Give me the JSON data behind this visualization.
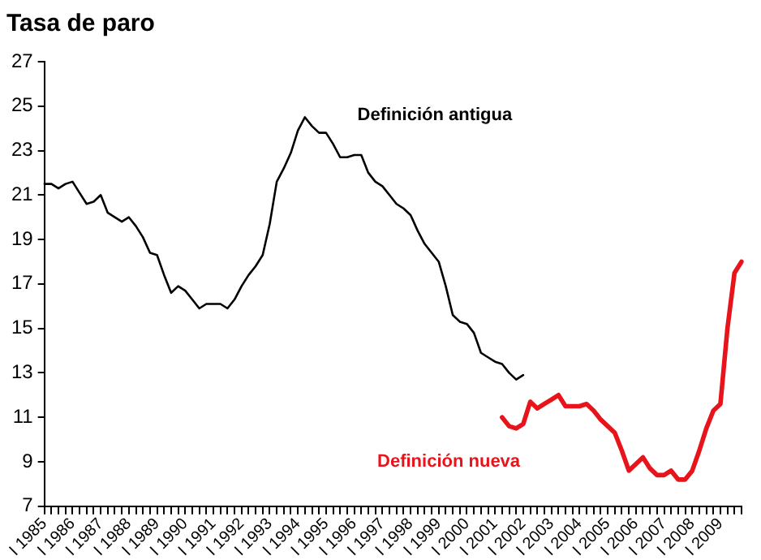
{
  "chart_data": {
    "type": "line",
    "title": "Tasa de paro",
    "categories": [
      "I 1985",
      null,
      null,
      null,
      "I 1986",
      null,
      null,
      null,
      "I 1987",
      null,
      null,
      null,
      "I 1988",
      null,
      null,
      null,
      "I 1989",
      null,
      null,
      null,
      "I 1990",
      null,
      null,
      null,
      "I 1991",
      null,
      null,
      null,
      "I 1992",
      null,
      null,
      null,
      "I 1993",
      null,
      null,
      null,
      "I 1994",
      null,
      null,
      null,
      "I 1995",
      null,
      null,
      null,
      "I 1996",
      null,
      null,
      null,
      "I 1997",
      null,
      null,
      null,
      "I 1998",
      null,
      null,
      null,
      "I 1999",
      null,
      null,
      null,
      "I 2000",
      null,
      null,
      null,
      "I 2001",
      null,
      null,
      null,
      "I 2002",
      null,
      null,
      null,
      "I 2003",
      null,
      null,
      null,
      "I 2004",
      null,
      null,
      null,
      "I 2005",
      null,
      null,
      null,
      "I 2006",
      null,
      null,
      null,
      "I 2007",
      null,
      null,
      null,
      "I 2008",
      null,
      null,
      null,
      "I 2009",
      null,
      null,
      null
    ],
    "series": [
      {
        "name": "Definición antigua",
        "color": "#000000",
        "values": [
          21.5,
          21.5,
          21.3,
          21.5,
          21.6,
          21.1,
          20.6,
          20.7,
          21.0,
          20.2,
          20.0,
          19.8,
          20.0,
          19.6,
          19.1,
          18.4,
          18.3,
          17.4,
          16.6,
          16.9,
          16.7,
          16.3,
          15.9,
          16.1,
          16.1,
          16.1,
          15.9,
          16.3,
          16.9,
          17.4,
          17.8,
          18.3,
          19.7,
          21.6,
          22.2,
          22.9,
          23.9,
          24.5,
          24.1,
          23.8,
          23.8,
          23.3,
          22.7,
          22.7,
          22.8,
          22.8,
          22.0,
          21.6,
          21.4,
          21.0,
          20.6,
          20.4,
          20.1,
          19.4,
          18.8,
          18.4,
          18.0,
          16.9,
          15.6,
          15.3,
          15.2,
          14.8,
          13.9,
          13.7,
          13.5,
          13.4,
          13.0,
          12.7,
          12.9,
          null,
          null,
          null,
          null,
          null,
          null,
          null,
          null,
          null,
          null,
          null,
          null,
          null,
          null,
          null,
          null,
          null,
          null,
          null,
          null,
          null,
          null,
          null,
          null,
          null,
          null,
          null,
          null,
          null,
          null,
          null
        ]
      },
      {
        "name": "Definición nueva",
        "color": "#e8141b",
        "values": [
          null,
          null,
          null,
          null,
          null,
          null,
          null,
          null,
          null,
          null,
          null,
          null,
          null,
          null,
          null,
          null,
          null,
          null,
          null,
          null,
          null,
          null,
          null,
          null,
          null,
          null,
          null,
          null,
          null,
          null,
          null,
          null,
          null,
          null,
          null,
          null,
          null,
          null,
          null,
          null,
          null,
          null,
          null,
          null,
          null,
          null,
          null,
          null,
          null,
          null,
          null,
          null,
          null,
          null,
          null,
          null,
          null,
          null,
          null,
          null,
          null,
          null,
          null,
          null,
          null,
          11.0,
          10.6,
          10.5,
          10.7,
          11.7,
          11.4,
          11.6,
          11.8,
          12.0,
          11.5,
          11.5,
          11.5,
          11.6,
          11.3,
          10.9,
          10.6,
          10.3,
          9.5,
          8.6,
          8.9,
          9.2,
          8.7,
          8.4,
          8.4,
          8.6,
          8.2,
          8.2,
          8.6,
          9.5,
          10.5,
          11.3,
          11.6,
          15.0,
          17.5,
          18.0
        ]
      }
    ],
    "ylim": [
      7,
      27
    ],
    "yticks": [
      7,
      9,
      11,
      13,
      15,
      17,
      19,
      21,
      23,
      25,
      27
    ],
    "grid": false,
    "legend": false,
    "marker": "none",
    "line_style": "solid"
  }
}
